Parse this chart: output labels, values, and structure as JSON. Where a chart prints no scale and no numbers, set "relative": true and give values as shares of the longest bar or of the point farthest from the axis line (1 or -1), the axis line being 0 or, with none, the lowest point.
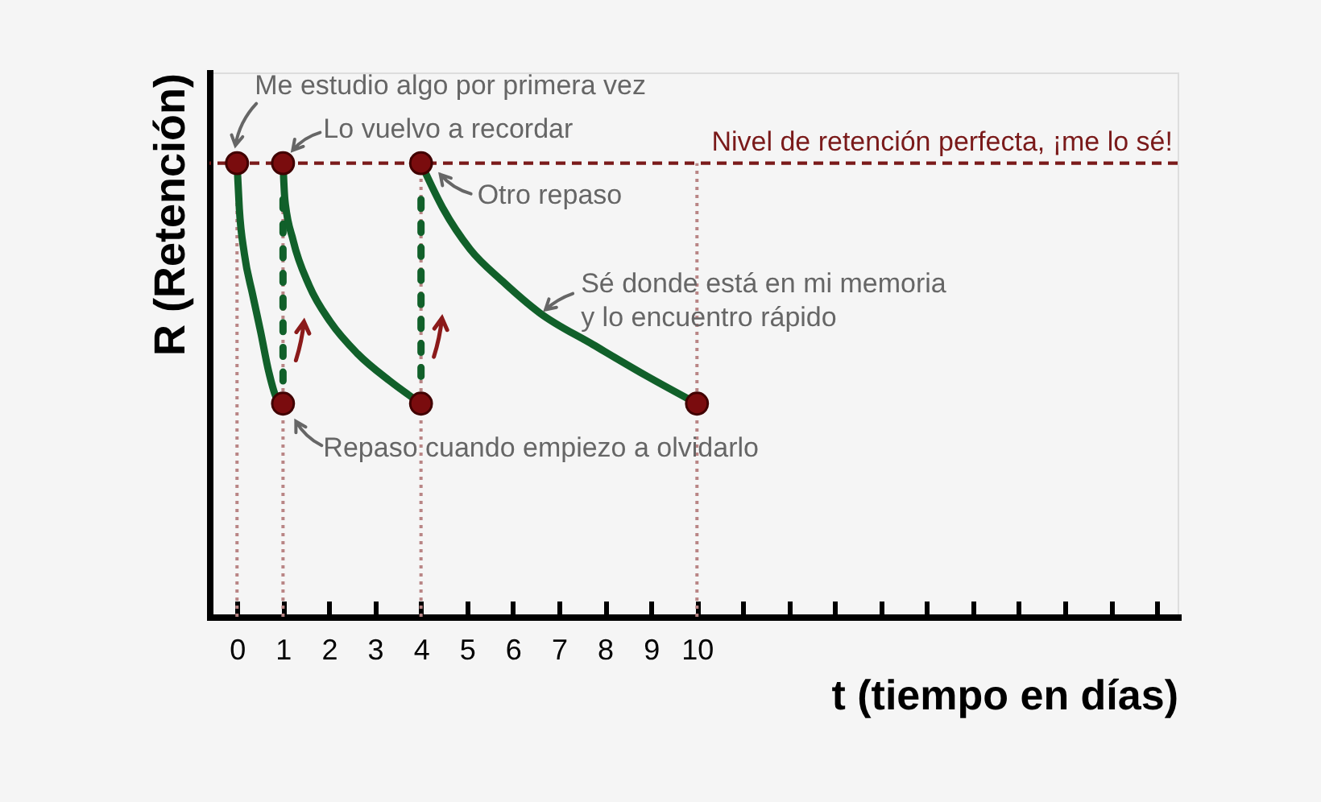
{
  "chart_data": {
    "type": "line",
    "xlabel": "t (tiempo en días)",
    "ylabel": "R (Retención)",
    "relative": true,
    "xlim": [
      -0.6,
      20.45
    ],
    "xticks": [
      0,
      1,
      2,
      3,
      4,
      5,
      6,
      7,
      8,
      9,
      10,
      {
        "value": 11,
        "label": null
      },
      {
        "value": 12,
        "label": null
      },
      {
        "value": 13,
        "label": null
      },
      {
        "value": 14,
        "label": null
      },
      {
        "value": 15,
        "label": null
      },
      {
        "value": 16,
        "label": null
      },
      {
        "value": 17,
        "label": null
      },
      {
        "value": 18,
        "label": null
      },
      {
        "value": 19,
        "label": null
      },
      {
        "value": 20,
        "label": null
      }
    ],
    "series": [
      {
        "line_style": "dashed",
        "color": "#11602a",
        "x": [
          1,
          1
        ],
        "values": [
          0.52,
          0.92
        ]
      },
      {
        "line_style": "dashed",
        "color": "#11602a",
        "x": [
          4,
          4
        ],
        "values": [
          0.53,
          0.92
        ]
      },
      {
        "color": "#11602a",
        "x": [
          0,
          0.05,
          0.16,
          0.34,
          0.51,
          0.69,
          0.87,
          1
        ],
        "values": [
          1,
          0.9,
          0.8,
          0.71,
          0.63,
          0.54,
          0.48,
          0.47
        ]
      },
      {
        "color": "#11602a",
        "x": [
          1,
          1.04,
          1.22,
          1.57,
          2.03,
          2.62,
          3.32,
          4
        ],
        "values": [
          1,
          0.92,
          0.83,
          0.73,
          0.65,
          0.58,
          0.52,
          0.47
        ]
      },
      {
        "color": "#11602a",
        "x": [
          4,
          4.48,
          5.07,
          5.77,
          6.58,
          7.74,
          8.92,
          10
        ],
        "values": [
          1,
          0.9,
          0.81,
          0.74,
          0.67,
          0.6,
          0.53,
          0.47
        ]
      },
      {
        "type": "scatter",
        "marker": "circle",
        "color": "#7a0c0e",
        "x": [
          0,
          1,
          1,
          4,
          4,
          10
        ],
        "values": [
          1,
          1,
          0.47,
          1,
          0.47,
          0.47
        ]
      }
    ],
    "ref_lines": [
      {
        "axis": "x",
        "value": 0,
        "color": "#b98585",
        "line_style": "dotted"
      },
      {
        "axis": "x",
        "value": 1,
        "color": "#b98585",
        "line_style": "dotted"
      },
      {
        "axis": "x",
        "value": 4,
        "color": "#b98585",
        "line_style": "dotted"
      },
      {
        "axis": "x",
        "value": 10,
        "color": "#b98585",
        "line_style": "dotted"
      },
      {
        "axis": "y",
        "value": 1,
        "label": "Nivel de retención perfecta, ¡me lo sé!",
        "color": "#7a1a1a",
        "line_style": "dashed"
      }
    ],
    "annotations": [
      {
        "text": "Me estudio algo por primera vez",
        "x": 0,
        "y": 1
      },
      {
        "text": "Lo vuelvo a recordar",
        "x": 1,
        "y": 1
      },
      {
        "text": "Otro repaso",
        "x": 4,
        "y": 1
      },
      {
        "text": "Sé donde está en mi memoria\ny lo encuentro rápido",
        "x": 6.6,
        "y": 0.67
      },
      {
        "text": "Repaso cuando empiezo a olvidarlo",
        "x": 1,
        "y": 0.47
      }
    ]
  }
}
